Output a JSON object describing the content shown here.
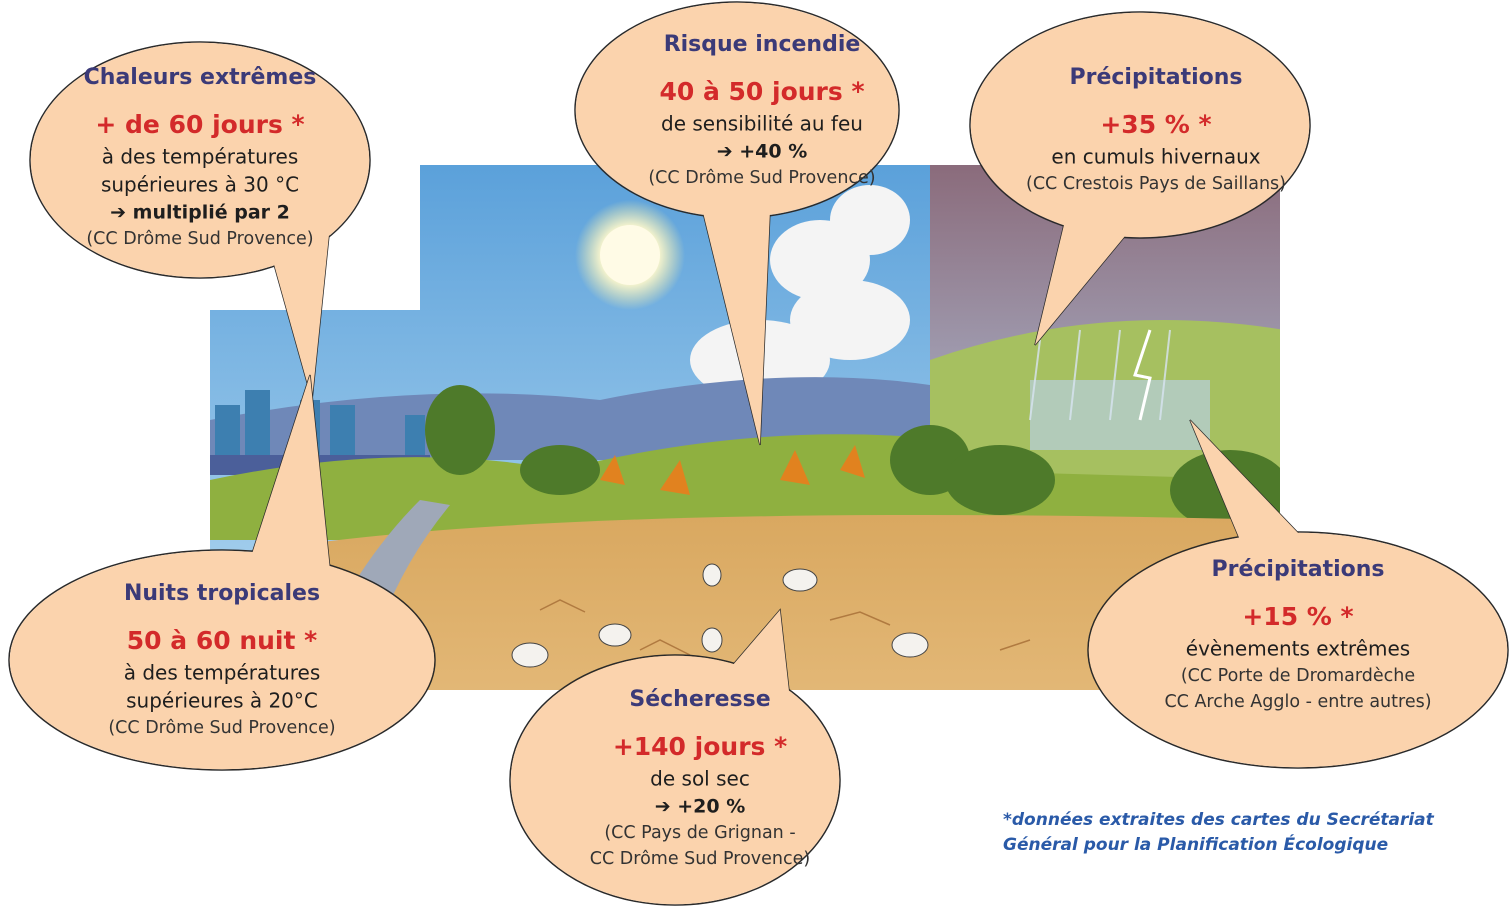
{
  "bubbles": [
    {
      "title": "Chaleurs extrêmes",
      "highlight": "+ de 60 jours *",
      "text": [
        "à des températures",
        "supérieures à 30 °C"
      ],
      "change": "➔ multiplié par 2",
      "source": [
        "(CC Drôme Sud Provence)"
      ]
    },
    {
      "title": "Risque incendie",
      "highlight": "40 à 50 jours *",
      "text": [
        "de sensibilité au feu"
      ],
      "change": "➔ +40 %",
      "source": [
        "(CC Drôme Sud Provence)"
      ]
    },
    {
      "title": "Précipitations",
      "highlight": "+35 % *",
      "text": [
        "en cumuls hivernaux"
      ],
      "source": [
        "(CC Crestois Pays de Saillans)"
      ]
    },
    {
      "title": "Nuits tropicales",
      "highlight": "50 à 60 nuit *",
      "text": [
        "à des températures",
        "supérieures à 20°C"
      ],
      "source": [
        "(CC Drôme Sud Provence)"
      ]
    },
    {
      "title": "Sécheresse",
      "highlight": "+140 jours *",
      "text": [
        "de sol sec"
      ],
      "change": "➔ +20 %",
      "source": [
        "(CC Pays de Grignan -",
        "CC Drôme Sud Provence)"
      ]
    },
    {
      "title": "Précipitations",
      "highlight": "+15 % *",
      "text": [
        "évènements extrêmes"
      ],
      "source": [
        "(CC Porte de Dromardèche",
        "CC Arche Agglo - entre autres)"
      ]
    }
  ],
  "footnote": [
    "*données extraites des cartes du Secrétariat",
    "Général pour la Planification Écologique"
  ]
}
